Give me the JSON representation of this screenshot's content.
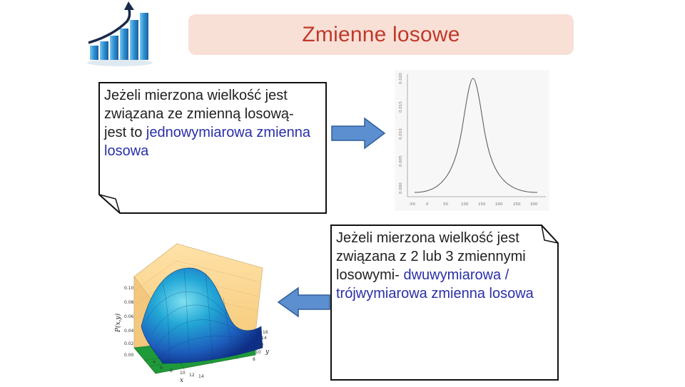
{
  "slide": {
    "title": "Zmienne losowe"
  },
  "note_1": {
    "text_plain": "Jeżeli mierzona wielkość jest związana ze zmienną losową- jest to ",
    "text_accent": "jednowymiarowa zmienna losowa"
  },
  "note_2": {
    "text_plain": "Jeżeli mierzona wielkość jest związana z 2 lub 3 zmiennymi losowymi- ",
    "text_accent": "dwuwymiarowa / trójwymiarowa zmienna losowa"
  },
  "bell_chart": {
    "x_ticks": [
      "-50",
      "0",
      "50",
      "100",
      "150",
      "200",
      "250",
      "300"
    ],
    "y_ticks": [
      "0.020",
      "0.015",
      "0.010",
      "0.005",
      "0.000"
    ]
  },
  "surface_chart": {
    "z_label": "P(x,y)",
    "z_ticks": [
      "0.10",
      "0.08",
      "0.06",
      "0.04",
      "0.02",
      "0.00"
    ],
    "x_label": "x",
    "x_ticks": [
      "4",
      "6",
      "8",
      "10",
      "12",
      "14"
    ],
    "y_label": "y",
    "y_ticks": [
      "8",
      "10",
      "12",
      "14",
      "16"
    ]
  },
  "colors": {
    "banner_bg": "#f8e0d6",
    "title_text": "#c0392b",
    "accent_text": "#2a2fa8",
    "arrow_fill": "#5b8fd0"
  },
  "icons": [
    "growth-chart-icon",
    "arrow-right-icon",
    "arrow-left-icon"
  ]
}
